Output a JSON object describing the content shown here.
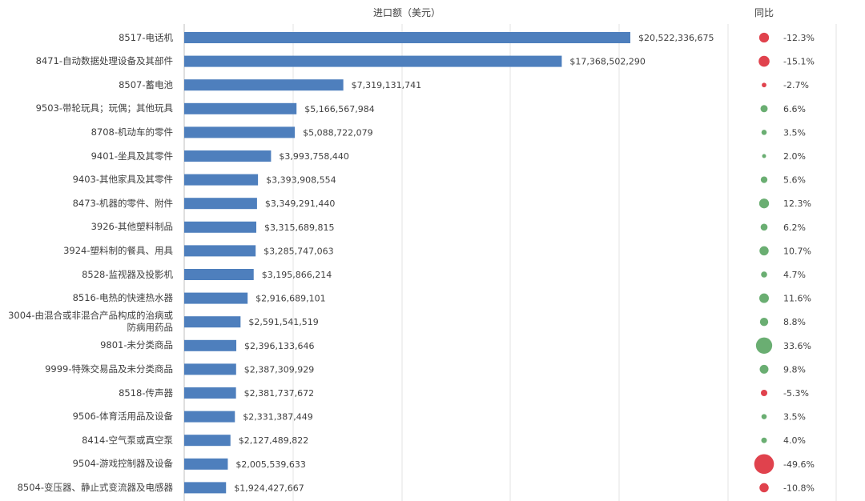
{
  "chart_data": {
    "type": "bar",
    "orientation": "horizontal",
    "xlabel": "进口额（美元）",
    "yoy_label": "同比",
    "categories": [
      "8517-电话机",
      "8471-自动数据处理设备及其部件",
      "8507-蓄电池",
      "9503-带轮玩具；玩偶；其他玩具",
      "8708-机动车的零件",
      "9401-坐具及其零件",
      "9403-其他家具及其零件",
      "8473-机器的零件、附件",
      "3926-其他塑料制品",
      "3924-塑料制的餐具、用具",
      "8528-监视器及投影机",
      "8516-电热的快速热水器",
      "3004-由混合或非混合产品构成的治病或防病用药品",
      "9801-未分类商品",
      "9999-特殊交易品及未分类商品",
      "8518-传声器",
      "9506-体育活用品及设备",
      "8414-空气泵或真空泵",
      "9504-游戏控制器及设备",
      "8504-变压器、静止式变流器及电感器"
    ],
    "values": [
      20522336675,
      17368502290,
      7319131741,
      5166567984,
      5088722079,
      3993758440,
      3393908554,
      3349291440,
      3315689815,
      3285747063,
      3195866214,
      2916689101,
      2591541519,
      2396133646,
      2387309929,
      2381737672,
      2331387449,
      2127489822,
      2005539633,
      1924427667
    ],
    "value_labels": [
      "$20,522,336,675",
      "$17,368,502,290",
      "$7,319,131,741",
      "$5,166,567,984",
      "$5,088,722,079",
      "$3,993,758,440",
      "$3,393,908,554",
      "$3,349,291,440",
      "$3,315,689,815",
      "$3,285,747,063",
      "$3,195,866,214",
      "$2,916,689,101",
      "$2,591,541,519",
      "$2,396,133,646",
      "$2,387,309,929",
      "$2,381,737,672",
      "$2,331,387,449",
      "$2,127,489,822",
      "$2,005,539,633",
      "$1,924,427,667"
    ],
    "yoy": [
      -12.3,
      -15.1,
      -2.7,
      6.6,
      3.5,
      2.0,
      5.6,
      12.3,
      6.2,
      10.7,
      4.7,
      11.6,
      8.8,
      33.6,
      9.8,
      -5.3,
      3.5,
      4.0,
      -49.6,
      -10.8
    ],
    "yoy_labels": [
      "-12.3%",
      "-15.1%",
      "-2.7%",
      "6.6%",
      "3.5%",
      "2.0%",
      "5.6%",
      "12.3%",
      "6.2%",
      "10.7%",
      "4.7%",
      "11.6%",
      "8.8%",
      "33.6%",
      "9.8%",
      "-5.3%",
      "3.5%",
      "4.0%",
      "-49.6%",
      "-10.8%"
    ],
    "xlim": [
      0,
      25000000000
    ],
    "grid": true,
    "colors": {
      "bar": "#4e7fbd",
      "positive": "#6aae72",
      "negative": "#e0424d",
      "grid": "#e3e3e3"
    }
  }
}
